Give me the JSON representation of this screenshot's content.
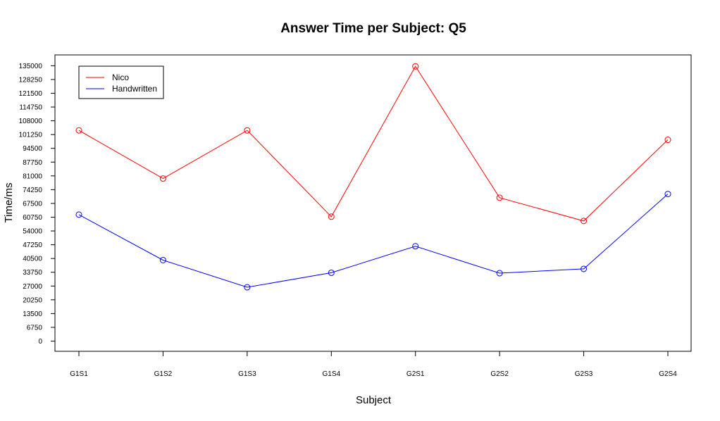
{
  "chart_data": {
    "type": "line",
    "title": "Answer Time per Subject: Q5",
    "xlabel": "Subject",
    "ylabel": "Time/ms",
    "categories": [
      "G1S1",
      "G1S2",
      "G1S3",
      "G1S4",
      "G2S1",
      "G2S2",
      "G2S3",
      "G2S4"
    ],
    "yticks": [
      0,
      6750,
      13500,
      20250,
      27000,
      33750,
      40500,
      47250,
      54000,
      60750,
      67500,
      74250,
      81000,
      87750,
      94500,
      101250,
      108000,
      114750,
      121500,
      128250,
      135000
    ],
    "ylim": [
      -5000,
      140300
    ],
    "grid": false,
    "legend_position": "top-left",
    "series": [
      {
        "name": "Nico",
        "color": "#ff0000",
        "values": [
          103300,
          79700,
          103300,
          61000,
          134700,
          70300,
          58900,
          98700
        ]
      },
      {
        "name": "Handwritten",
        "color": "#0000ff",
        "values": [
          62000,
          39700,
          26400,
          33500,
          46500,
          33300,
          35400,
          72100
        ]
      }
    ]
  }
}
